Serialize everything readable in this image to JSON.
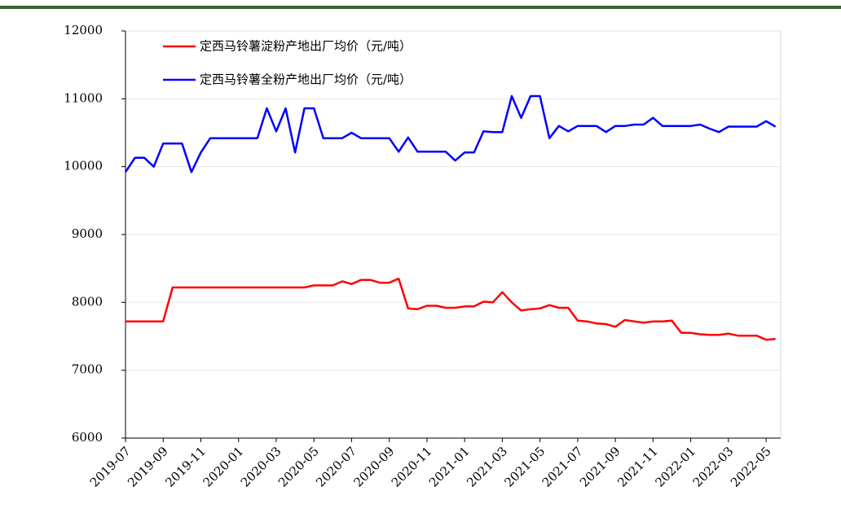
{
  "chart_data": {
    "type": "line",
    "categories": [
      "2019-07",
      null,
      null,
      null,
      "2019-09",
      null,
      null,
      null,
      "2019-11",
      null,
      null,
      null,
      "2020-01",
      null,
      null,
      null,
      "2020-03",
      null,
      null,
      null,
      "2020-05",
      null,
      null,
      null,
      "2020-07",
      null,
      null,
      null,
      "2020-09",
      null,
      null,
      null,
      "2020-11",
      null,
      null,
      null,
      "2021-01",
      null,
      null,
      null,
      "2021-03",
      null,
      null,
      null,
      "2021-05",
      null,
      null,
      null,
      "2021-07",
      null,
      null,
      null,
      "2021-09",
      null,
      null,
      null,
      "2021-11",
      null,
      null,
      null,
      "2022-01",
      null,
      null,
      null,
      "2022-03",
      null,
      null,
      null,
      "2022-05",
      null
    ],
    "series": [
      {
        "name": "定西马铃薯淀粉产地出厂均价（元/吨）",
        "color": "#ff0000",
        "values": [
          7720,
          7720,
          7720,
          7720,
          7720,
          8220,
          8220,
          8220,
          8220,
          8220,
          8220,
          8220,
          8220,
          8220,
          8220,
          8220,
          8220,
          8220,
          8220,
          8220,
          8250,
          8250,
          8250,
          8310,
          8270,
          8330,
          8330,
          8290,
          8290,
          8350,
          7910,
          7900,
          7950,
          7950,
          7920,
          7920,
          7940,
          7940,
          8010,
          8000,
          8150,
          8000,
          7880,
          7900,
          7910,
          7960,
          7920,
          7920,
          7730,
          7720,
          7690,
          7680,
          7640,
          7740,
          7720,
          7700,
          7720,
          7720,
          7730,
          7550,
          7550,
          7530,
          7520,
          7520,
          7540,
          7510,
          7510,
          7510,
          7450,
          7460
        ]
      },
      {
        "name": "定西马铃薯全粉产地出厂均价（元/吨）",
        "color": "#0000ff",
        "values": [
          9920,
          10130,
          10130,
          10000,
          10340,
          10340,
          10340,
          9920,
          10210,
          10420,
          10420,
          10420,
          10420,
          10420,
          10420,
          10860,
          10520,
          10860,
          10210,
          10860,
          10860,
          10420,
          10420,
          10420,
          10500,
          10420,
          10420,
          10420,
          10420,
          10220,
          10430,
          10220,
          10220,
          10220,
          10220,
          10090,
          10210,
          10210,
          10520,
          10510,
          10510,
          11040,
          10720,
          11040,
          11040,
          10420,
          10600,
          10520,
          10600,
          10600,
          10600,
          10510,
          10600,
          10600,
          10620,
          10620,
          10720,
          10600,
          10600,
          10600,
          10600,
          10620,
          10560,
          10510,
          10590,
          10590,
          10590,
          10590,
          10670,
          10590
        ]
      }
    ],
    "ylim": [
      6000,
      12000
    ],
    "yticks": [
      6000,
      7000,
      8000,
      9000,
      10000,
      11000,
      12000
    ],
    "grid": true
  }
}
